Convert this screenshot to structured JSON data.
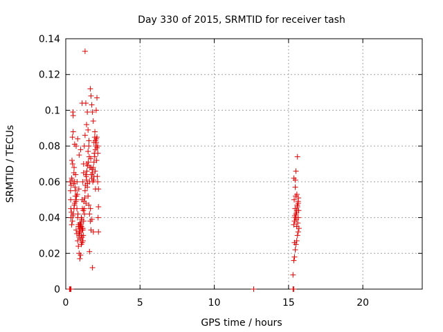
{
  "chart_data": {
    "type": "scatter",
    "title": "Day 330 of 2015, SRMTID for receiver tash",
    "xlabel": "GPS time / hours",
    "ylabel": "SRMTID / TECUs",
    "xlim": [
      0,
      24
    ],
    "ylim": [
      0,
      0.14
    ],
    "xticks": [
      0,
      5,
      10,
      15,
      20
    ],
    "xtick_labels": [
      "0",
      "5",
      "10",
      "15",
      "20"
    ],
    "yticks": [
      0,
      0.02,
      0.04,
      0.06,
      0.08,
      0.1,
      0.12,
      0.14
    ],
    "ytick_labels": [
      "0",
      "0.02",
      "0.04",
      "0.06",
      "0.08",
      "0.1",
      "0.12",
      "0.14"
    ],
    "grid": true,
    "marker": "plus",
    "color": "#e00000",
    "series": [
      {
        "name": "",
        "x": [
          0.3,
          0.32,
          0.33,
          0.34,
          0.35,
          0.36,
          0.4,
          0.42,
          0.45,
          0.48,
          0.5,
          0.55,
          0.6,
          0.65,
          0.7,
          0.75,
          0.8,
          0.85,
          0.9,
          0.95,
          1.0,
          1.05,
          1.1,
          1.15,
          1.2,
          1.25,
          1.3,
          1.35,
          1.4,
          1.45,
          1.5,
          1.55,
          1.6,
          1.65,
          1.7,
          1.75,
          1.8,
          1.85,
          1.9,
          1.95,
          2.0,
          2.05,
          2.1,
          2.15,
          2.2,
          0.4,
          0.45,
          0.5,
          0.55,
          0.6,
          0.65,
          0.7,
          0.75,
          0.8,
          0.85,
          0.9,
          0.95,
          1.0,
          1.05,
          1.1,
          1.15,
          1.2,
          1.25,
          1.3,
          1.35,
          1.4,
          1.45,
          1.5,
          1.55,
          1.6,
          1.65,
          1.7,
          1.75,
          1.8,
          1.85,
          1.9,
          1.95,
          2.0,
          2.05,
          2.1,
          2.15,
          2.2,
          0.42,
          0.52,
          0.62,
          0.72,
          0.82,
          0.92,
          1.02,
          1.12,
          1.22,
          1.32,
          1.42,
          1.52,
          1.62,
          1.72,
          1.82,
          1.92,
          2.02,
          2.12,
          0.38,
          0.48,
          0.58,
          0.68,
          0.78,
          0.88,
          0.98,
          1.08,
          1.18,
          1.28,
          1.38,
          1.48,
          1.58,
          1.68,
          1.78,
          1.88,
          1.98,
          2.08,
          2.18,
          0.46,
          0.56,
          0.66,
          0.76,
          0.86,
          0.96,
          1.06,
          1.16,
          1.26,
          1.36,
          1.46,
          1.56,
          1.66,
          1.76,
          1.86,
          1.96,
          2.06,
          2.16,
          0.5,
          0.7,
          0.9,
          1.1,
          1.3,
          1.5,
          1.7,
          1.9,
          2.1,
          0.6,
          0.8,
          1.0,
          1.2,
          1.4,
          1.6,
          1.8,
          2.0,
          2.2,
          0.95,
          1.05,
          1.15,
          0.92,
          1.02,
          1.12,
          0.88,
          0.98,
          1.08,
          1.18,
          0.9,
          1.0,
          1.1,
          15.3,
          15.35,
          15.4,
          15.45,
          15.5,
          15.55,
          15.6,
          15.65,
          15.7,
          15.35,
          15.4,
          15.45,
          15.5,
          15.55,
          15.6,
          15.65,
          15.38,
          15.48,
          15.58,
          15.68,
          15.42,
          15.52,
          15.62,
          15.44,
          15.54,
          15.64,
          15.36,
          15.46,
          15.56,
          15.66,
          15.5,
          15.6,
          15.4,
          15.55,
          15.45,
          15.65,
          0.25,
          0.3,
          0.35,
          12.65,
          15.3,
          15.35
        ],
        "y": [
          0.06,
          0.055,
          0.05,
          0.045,
          0.04,
          0.058,
          0.062,
          0.072,
          0.085,
          0.099,
          0.097,
          0.065,
          0.06,
          0.055,
          0.05,
          0.045,
          0.04,
          0.035,
          0.03,
          0.034,
          0.036,
          0.04,
          0.05,
          0.06,
          0.07,
          0.08,
          0.133,
          0.104,
          0.092,
          0.099,
          0.089,
          0.08,
          0.06,
          0.112,
          0.108,
          0.103,
          0.099,
          0.094,
          0.082,
          0.085,
          0.083,
          0.1,
          0.107,
          0.08,
          0.056,
          0.036,
          0.038,
          0.042,
          0.045,
          0.048,
          0.052,
          0.033,
          0.031,
          0.027,
          0.024,
          0.02,
          0.017,
          0.019,
          0.025,
          0.029,
          0.034,
          0.038,
          0.045,
          0.055,
          0.064,
          0.07,
          0.057,
          0.052,
          0.047,
          0.042,
          0.038,
          0.033,
          0.062,
          0.065,
          0.068,
          0.071,
          0.074,
          0.078,
          0.082,
          0.085,
          0.06,
          0.046,
          0.061,
          0.059,
          0.057,
          0.052,
          0.042,
          0.035,
          0.037,
          0.045,
          0.049,
          0.058,
          0.066,
          0.071,
          0.068,
          0.064,
          0.06,
          0.076,
          0.08,
          0.063,
          0.043,
          0.041,
          0.047,
          0.049,
          0.053,
          0.056,
          0.034,
          0.039,
          0.044,
          0.051,
          0.063,
          0.069,
          0.074,
          0.073,
          0.067,
          0.061,
          0.066,
          0.072,
          0.04,
          0.07,
          0.068,
          0.064,
          0.06,
          0.036,
          0.032,
          0.03,
          0.027,
          0.042,
          0.048,
          0.059,
          0.083,
          0.045,
          0.039,
          0.032,
          0.088,
          0.084,
          0.076,
          0.088,
          0.08,
          0.075,
          0.104,
          0.086,
          0.077,
          0.068,
          0.063,
          0.079,
          0.081,
          0.084,
          0.078,
          0.065,
          0.061,
          0.021,
          0.012,
          0.056,
          0.032,
          0.037,
          0.035,
          0.033,
          0.032,
          0.036,
          0.034,
          0.031,
          0.036,
          0.033,
          0.03,
          0.029,
          0.028,
          0.026,
          0.008,
          0.016,
          0.018,
          0.022,
          0.025,
          0.027,
          0.03,
          0.032,
          0.034,
          0.036,
          0.038,
          0.04,
          0.042,
          0.044,
          0.046,
          0.048,
          0.05,
          0.052,
          0.047,
          0.044,
          0.041,
          0.039,
          0.037,
          0.045,
          0.043,
          0.049,
          0.062,
          0.061,
          0.053,
          0.051,
          0.066,
          0.074,
          0.026,
          0.035,
          0.057,
          0.04,
          0.0,
          0.0,
          0.0,
          0.0,
          0.0,
          0.0
        ]
      }
    ]
  }
}
